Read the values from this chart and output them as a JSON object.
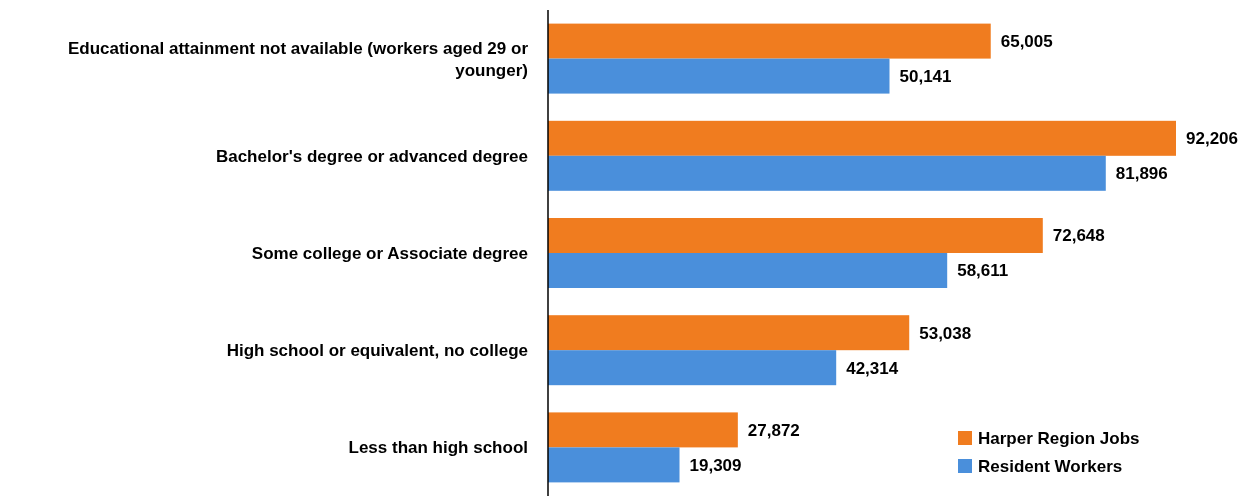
{
  "chart_data": {
    "type": "bar",
    "orientation": "horizontal",
    "categories": [
      "Educational attainment not available (workers aged 29 or younger)",
      "Bachelor's degree or advanced degree",
      "Some college or Associate degree",
      "High school or equivalent, no college",
      "Less than high school"
    ],
    "series": [
      {
        "name": "Harper Region Jobs",
        "color": "#f07c1f",
        "values": [
          65005,
          92206,
          72648,
          53038,
          27872
        ],
        "value_labels": [
          "65,005",
          "92,206",
          "72,648",
          "53,038",
          "27,872"
        ]
      },
      {
        "name": "Resident Workers",
        "color": "#4a8fdb",
        "values": [
          50141,
          81896,
          58611,
          42314,
          19309
        ],
        "value_labels": [
          "50,141",
          "81,896",
          "58,611",
          "42,314",
          "19,309"
        ]
      }
    ],
    "legend": "bottom right"
  }
}
